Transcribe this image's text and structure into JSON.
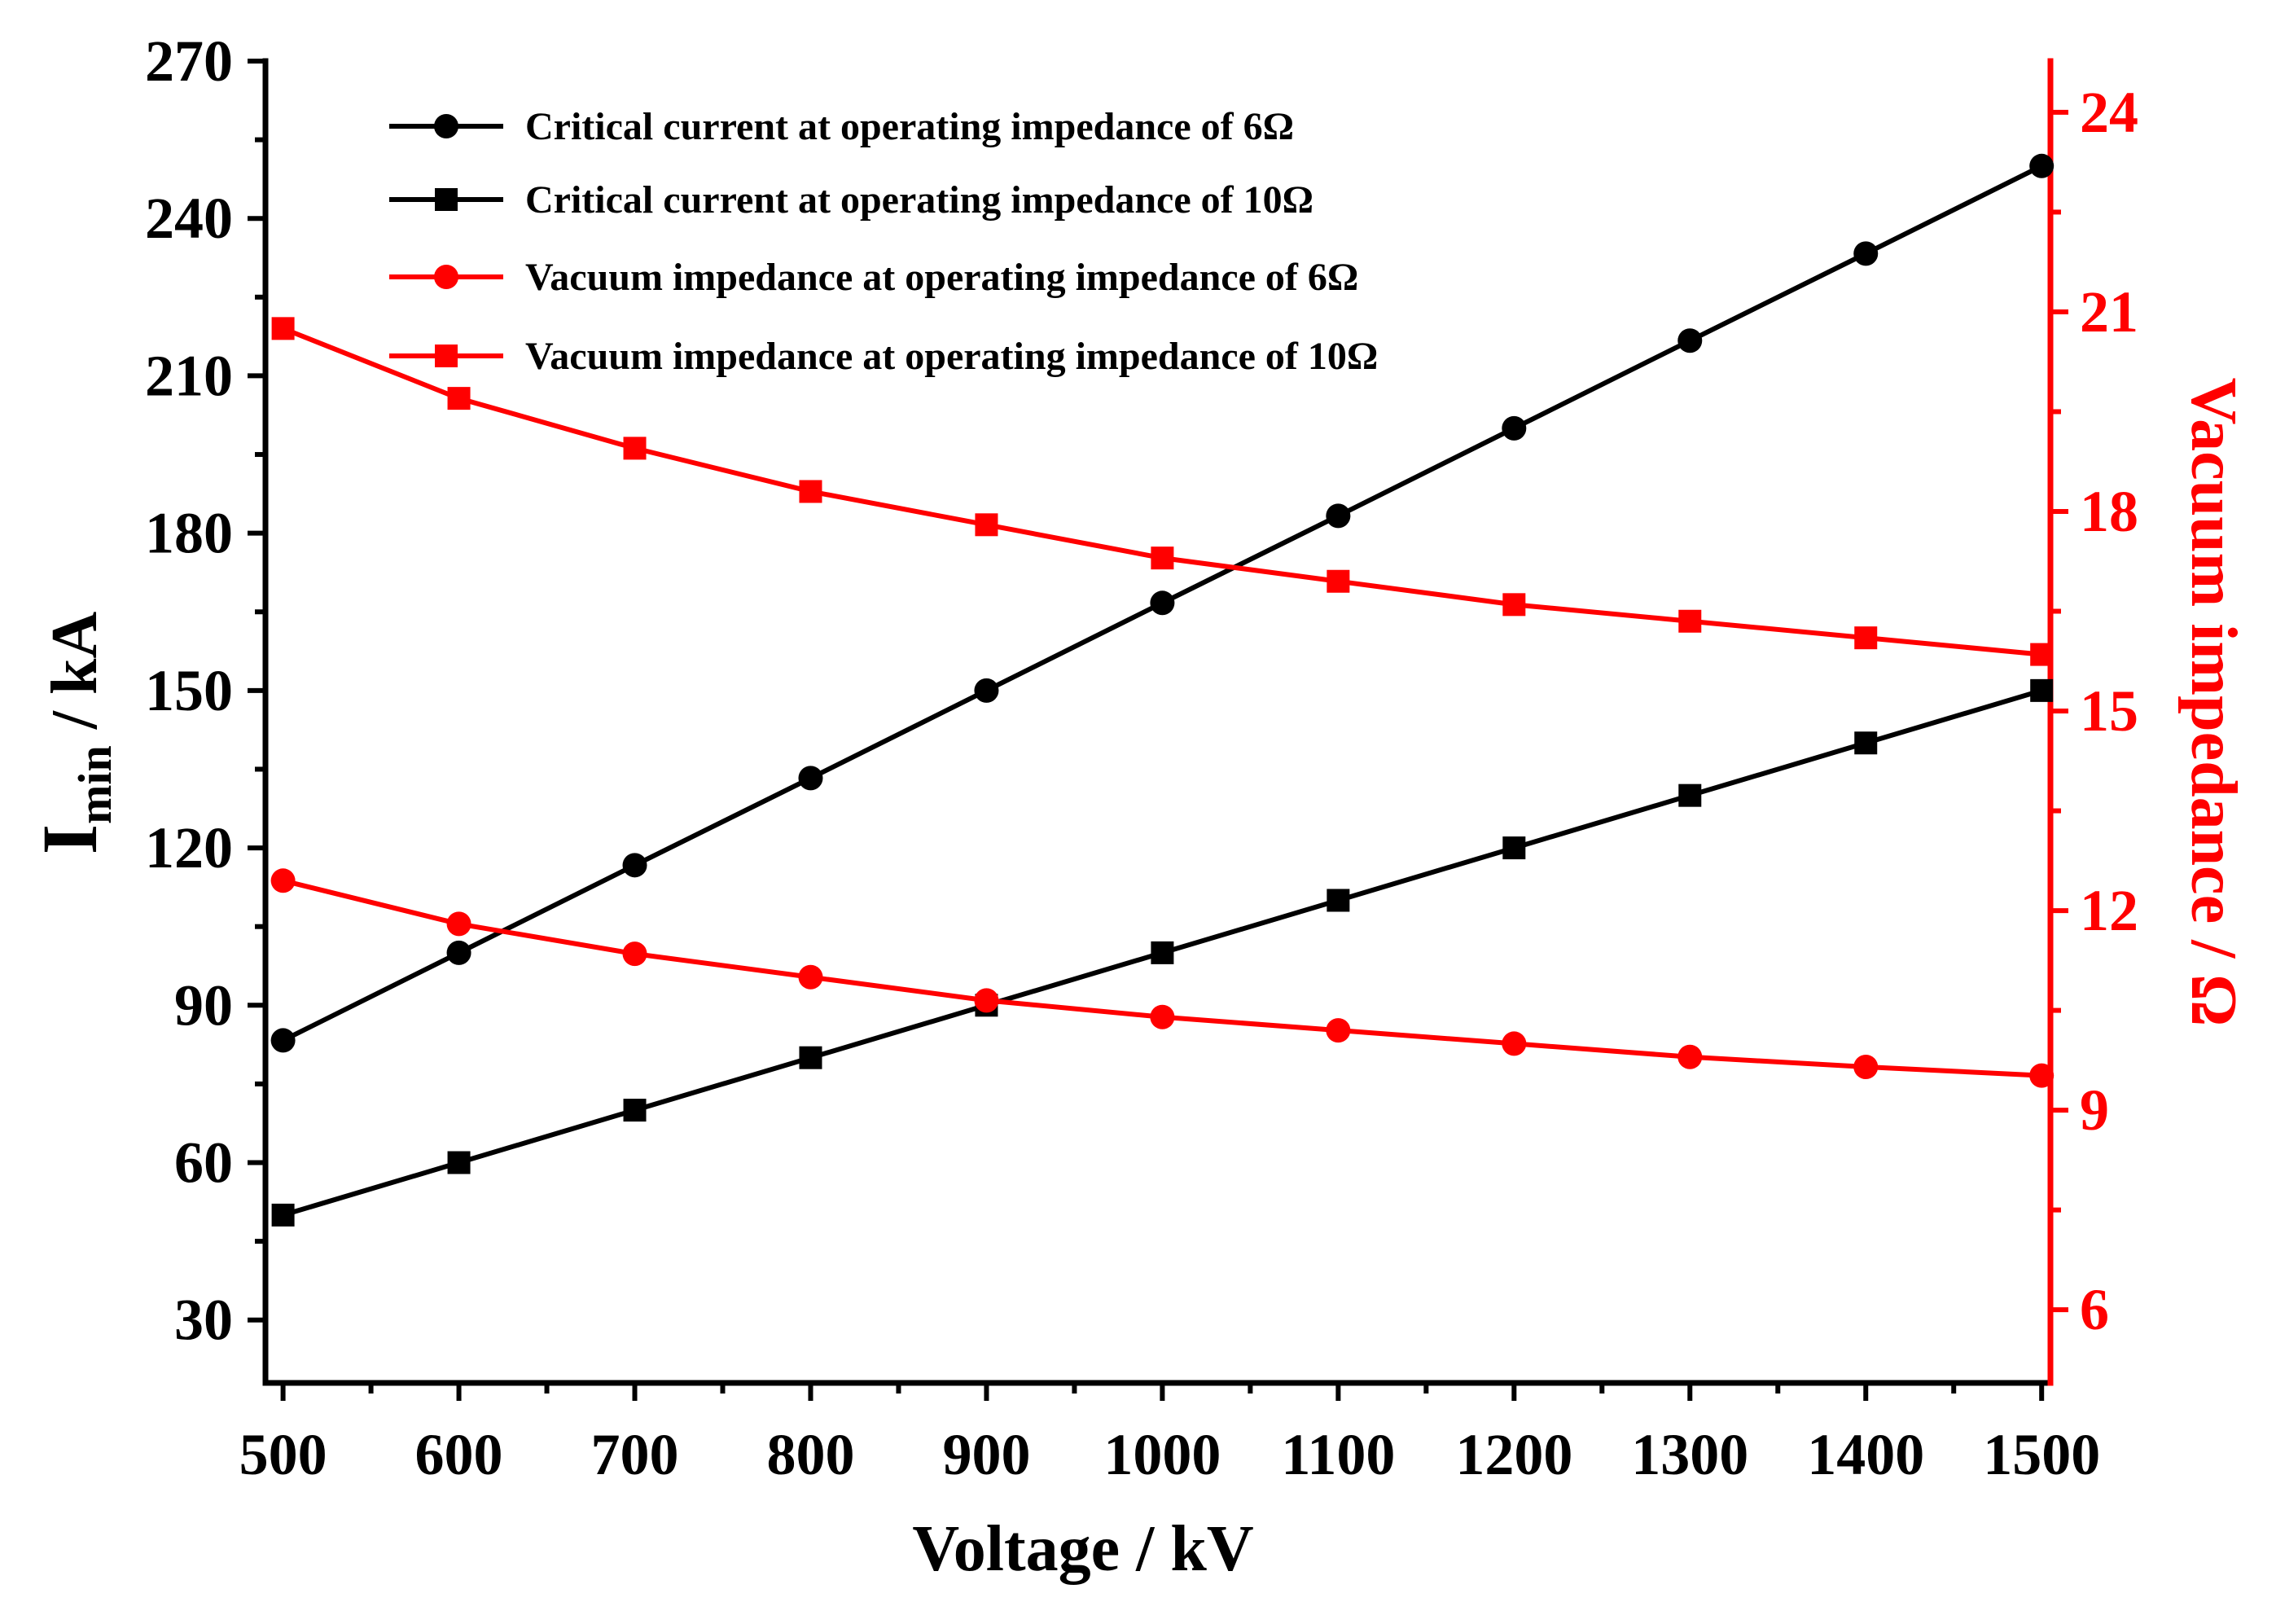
{
  "chart_data": {
    "type": "line",
    "xlabel": "Voltage / kV",
    "ylabel": {
      "main": "I",
      "sub": "min",
      "unit": " / kA"
    },
    "y2label": "Vacuum impedance / Ω",
    "xlim": [
      490,
      1505
    ],
    "ylim": [
      18,
      270
    ],
    "y2lim": [
      4.9,
      24.77
    ],
    "x_ticks": [
      500,
      600,
      700,
      800,
      900,
      1000,
      1100,
      1200,
      1300,
      1400,
      1500
    ],
    "y_ticks": [
      30,
      60,
      90,
      120,
      150,
      180,
      210,
      240,
      270
    ],
    "y2_ticks": [
      6,
      9,
      12,
      15,
      18,
      21,
      24
    ],
    "legend_position": "top-left",
    "colors": {
      "primary": "#000000",
      "secondary": "#ff0000"
    },
    "x": [
      500,
      600,
      700,
      800,
      900,
      1000,
      1100,
      1200,
      1300,
      1400,
      1500
    ],
    "series": [
      {
        "name": "Critical current at operating impedance of 6Ω",
        "axis": "left",
        "marker": "circle",
        "color": "#000000",
        "values": [
          83.3,
          100,
          116.7,
          133.3,
          150,
          166.7,
          183.3,
          200,
          216.7,
          233.3,
          250
        ]
      },
      {
        "name": "Critical current at operating impedance of 10Ω",
        "axis": "left",
        "marker": "square",
        "color": "#000000",
        "values": [
          50,
          60,
          70,
          80,
          90,
          100,
          110,
          120,
          130,
          140,
          150
        ]
      },
      {
        "name": "Vacuum impedance at  operating impedance of 6Ω",
        "axis": "right",
        "marker": "circle",
        "color": "#ff0000",
        "values": [
          12.45,
          11.8,
          11.35,
          11.0,
          10.65,
          10.4,
          10.2,
          10.0,
          9.8,
          9.65,
          9.52
        ]
      },
      {
        "name": "Vacuum impedance at  operating impedance of 10Ω",
        "axis": "right",
        "marker": "square",
        "color": "#ff0000",
        "values": [
          20.75,
          19.7,
          18.95,
          18.3,
          17.8,
          17.3,
          16.95,
          16.6,
          16.35,
          16.1,
          15.85
        ]
      }
    ]
  }
}
